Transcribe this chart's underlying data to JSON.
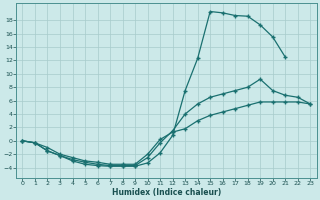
{
  "xlabel": "Humidex (Indice chaleur)",
  "bg_color": "#cce9e9",
  "line_color": "#1a7070",
  "xlim": [
    -0.5,
    23.5
  ],
  "ylim": [
    -5.5,
    20.5
  ],
  "yticks": [
    -4,
    -2,
    0,
    2,
    4,
    6,
    8,
    10,
    12,
    14,
    16,
    18
  ],
  "xticks": [
    0,
    1,
    2,
    3,
    4,
    5,
    6,
    7,
    8,
    9,
    10,
    11,
    12,
    13,
    14,
    15,
    16,
    17,
    18,
    19,
    20,
    21,
    22,
    23
  ],
  "curve1_x": [
    0,
    1,
    2,
    3,
    4,
    5,
    6,
    7,
    8,
    9,
    10,
    11,
    12,
    13,
    14,
    15,
    16,
    17,
    18,
    19,
    20,
    21
  ],
  "curve1_y": [
    0.0,
    -0.3,
    -1.5,
    -2.2,
    -3.0,
    -3.5,
    -3.7,
    -3.8,
    -3.8,
    -3.8,
    -3.3,
    -1.8,
    0.8,
    7.5,
    12.3,
    19.3,
    19.1,
    18.7,
    18.6,
    17.3,
    15.5,
    12.5
  ],
  "curve2_x": [
    0,
    1,
    2,
    3,
    4,
    5,
    6,
    7,
    8,
    9,
    10,
    11,
    12,
    13,
    14,
    15,
    16,
    17,
    18,
    19,
    20,
    21,
    22,
    23
  ],
  "curve2_y": [
    0.0,
    -0.3,
    -1.5,
    -2.2,
    -2.8,
    -3.2,
    -3.5,
    -3.7,
    -3.7,
    -3.7,
    -2.5,
    -0.3,
    1.5,
    4.0,
    5.5,
    6.5,
    7.0,
    7.5,
    8.0,
    9.2,
    7.5,
    6.8,
    6.5,
    5.5
  ],
  "curve3_x": [
    0,
    1,
    2,
    3,
    4,
    5,
    6,
    7,
    8,
    9,
    10,
    11,
    12,
    13,
    14,
    15,
    16,
    17,
    18,
    19,
    20,
    21,
    22,
    23
  ],
  "curve3_y": [
    0.0,
    -0.3,
    -1.0,
    -2.0,
    -2.5,
    -3.0,
    -3.2,
    -3.5,
    -3.5,
    -3.5,
    -2.0,
    0.2,
    1.3,
    1.8,
    3.0,
    3.8,
    4.3,
    4.8,
    5.3,
    5.8,
    5.8,
    5.8,
    5.8,
    5.5
  ]
}
